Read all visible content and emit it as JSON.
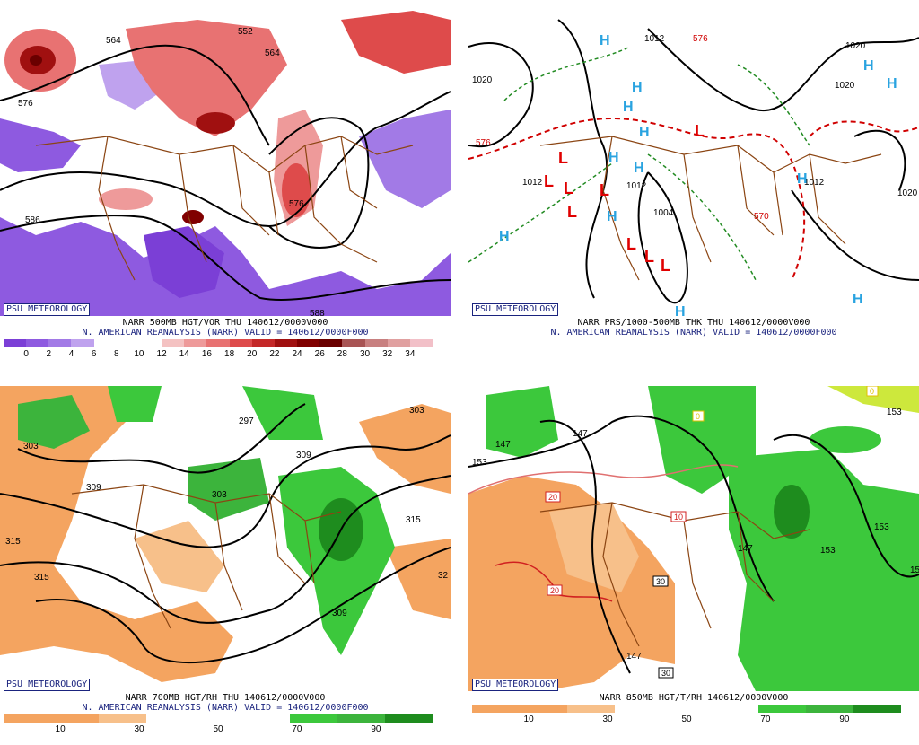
{
  "panels": [
    {
      "id": "p1",
      "badge": "PSU METEOROLOGY",
      "title_line1": "NARR 500MB HGT/VOR THU 140612/0000V000",
      "title_line2": "N. AMERICAN REANALYSIS (NARR) VALID = 140612/0000F000",
      "colorbar": {
        "colors": [
          "#7b3fd6",
          "#8e5ae0",
          "#a27ae6",
          "#bfa2ee",
          "#ffffff",
          "#ffffff",
          "#ffffff",
          "#f4c2c2",
          "#ee9a9a",
          "#e87272",
          "#de4b4b",
          "#c42828",
          "#a01010",
          "#800000",
          "#6a0000",
          "#a85454",
          "#c88080",
          "#e0a0a0",
          "#f2c0c8"
        ],
        "labels": [
          "0",
          "2",
          "4",
          "6",
          "8",
          "10",
          "12",
          "14",
          "16",
          "18",
          "20",
          "22",
          "24",
          "26",
          "28",
          "30",
          "32",
          "34"
        ]
      },
      "contour_labels": [
        "564",
        "552",
        "564",
        "576",
        "576",
        "586",
        "588"
      ]
    },
    {
      "id": "p2",
      "badge": "PSU METEOROLOGY",
      "title_line1": "NARR PRS/1000-500MB THK THU 140612/0000V000",
      "title_line2": "N. AMERICAN REANALYSIS (NARR) VALID = 140612/0000F000",
      "contour_labels": [
        "1020",
        "1012",
        "576",
        "1012",
        "1012",
        "1004",
        "570",
        "1020",
        "1020",
        "1012",
        "576",
        "1020"
      ],
      "highs": [
        "H",
        "H",
        "H",
        "H",
        "H",
        "H",
        "H",
        "H",
        "H",
        "H",
        "H",
        "H",
        "H"
      ],
      "lows": [
        "L",
        "L",
        "L",
        "L",
        "L",
        "L",
        "L",
        "L",
        "L"
      ]
    },
    {
      "id": "p3",
      "badge": "PSU METEOROLOGY",
      "title_line1": "NARR 700MB HGT/RH THU 140612/0000V000",
      "title_line2": "N. AMERICAN REANALYSIS (NARR) VALID = 140612/0000F000",
      "colorbar": {
        "colors": [
          "#f4a460",
          "#f4a460",
          "#f7c08a",
          "#ffffff",
          "#ffffff",
          "#ffffff",
          "#3cc83c",
          "#3cb43c",
          "#1e8c1e"
        ],
        "labels": [
          "10",
          "30",
          "50",
          "70",
          "90"
        ]
      },
      "contour_labels": [
        "303",
        "297",
        "303",
        "309",
        "309",
        "303",
        "315",
        "315",
        "309",
        "315",
        "32"
      ]
    },
    {
      "id": "p4",
      "badge": "PSU METEOROLOGY",
      "title_line1": "NARR 850MB HGT/T/RH 140612/0000V000",
      "colorbar": {
        "colors": [
          "#f4a460",
          "#f4a460",
          "#f7c08a",
          "#ffffff",
          "#ffffff",
          "#ffffff",
          "#3cc83c",
          "#3cb43c",
          "#1e8c1e"
        ],
        "labels": [
          "10",
          "30",
          "50",
          "70",
          "90"
        ]
      },
      "contour_labels": [
        "147",
        "147",
        "153",
        "147",
        "153",
        "153",
        "153",
        "147",
        "15"
      ],
      "temp_boxes": [
        "20",
        "20",
        "10",
        "30",
        "30",
        "0",
        "0"
      ]
    }
  ]
}
